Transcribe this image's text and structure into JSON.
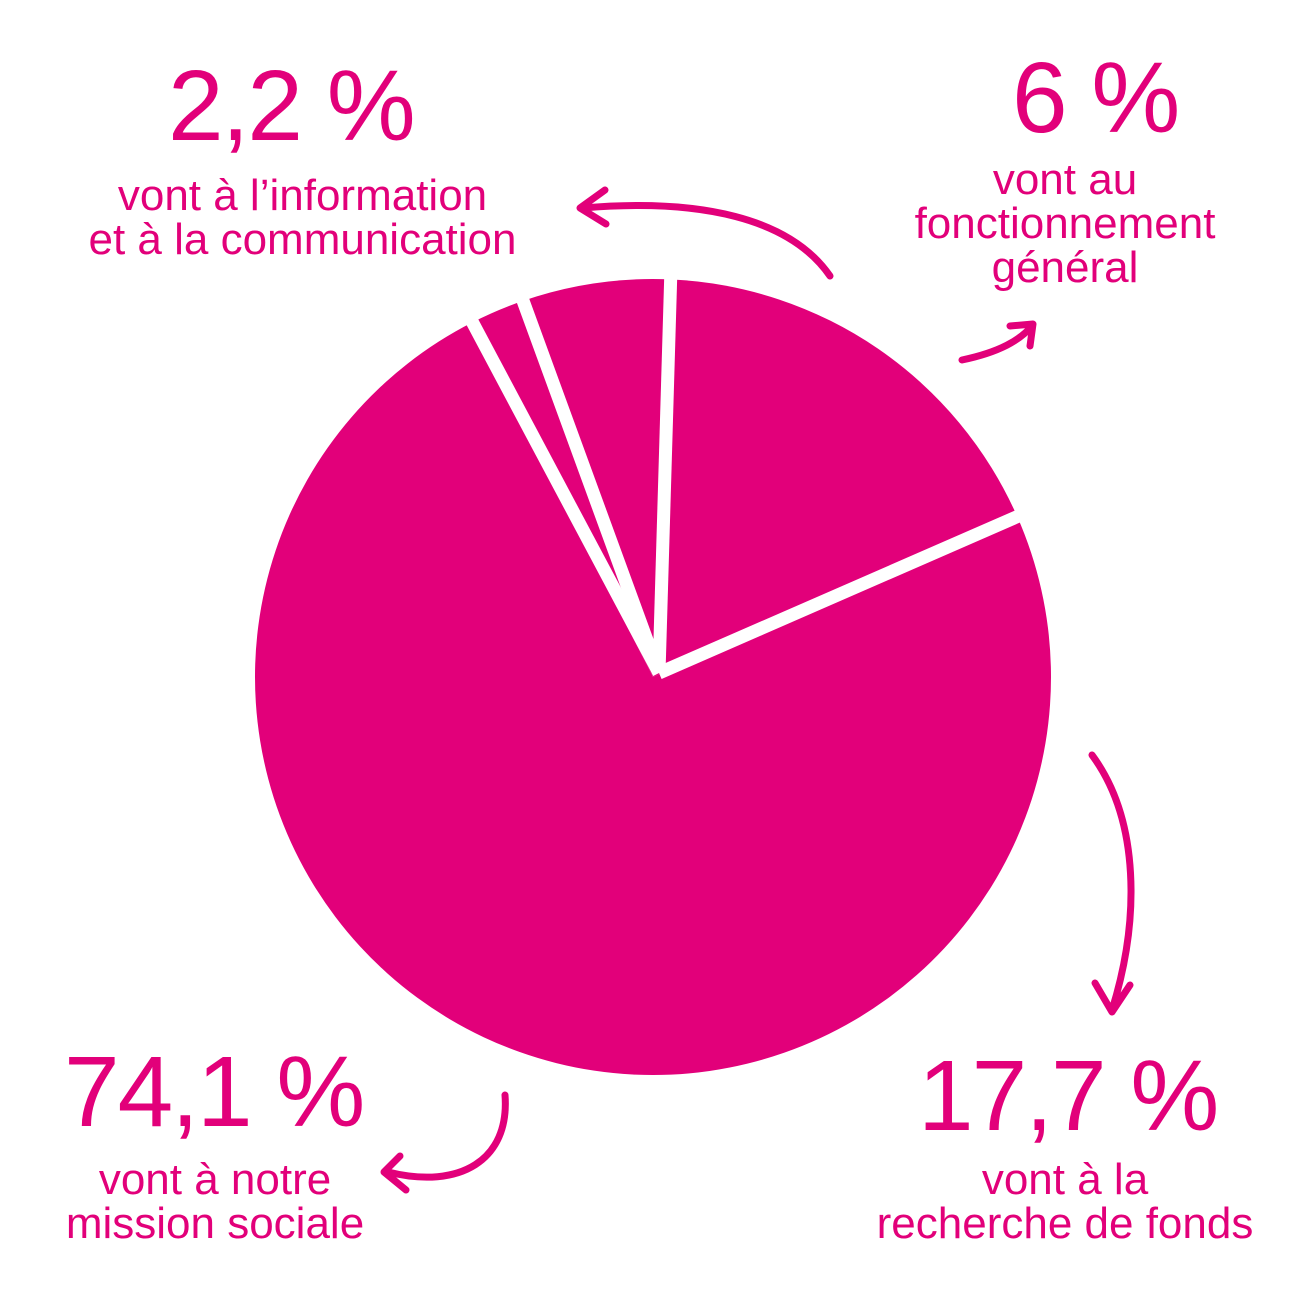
{
  "colors": {
    "accent": "#E2007A",
    "separator": "#FFFFFF"
  },
  "chart_data": {
    "type": "pie",
    "categories": [
      "vont à notre mission sociale",
      "vont à la recherche de fonds",
      "vont au fonctionnement général",
      "vont à l’information et à la communication"
    ],
    "values": [
      74.1,
      17.7,
      6,
      2.2
    ],
    "value_labels": [
      "74,1 %",
      "17,7 %",
      "6 %",
      "2,2 %"
    ],
    "descriptions": [
      [
        "vont à notre",
        "mission sociale"
      ],
      [
        "vont à la",
        "recherche de fonds"
      ],
      [
        "vont au",
        "fonctionnement",
        "général"
      ],
      [
        "vont à l’information",
        "et à la communication"
      ]
    ],
    "unit": "%",
    "title": "",
    "legend": "none"
  }
}
